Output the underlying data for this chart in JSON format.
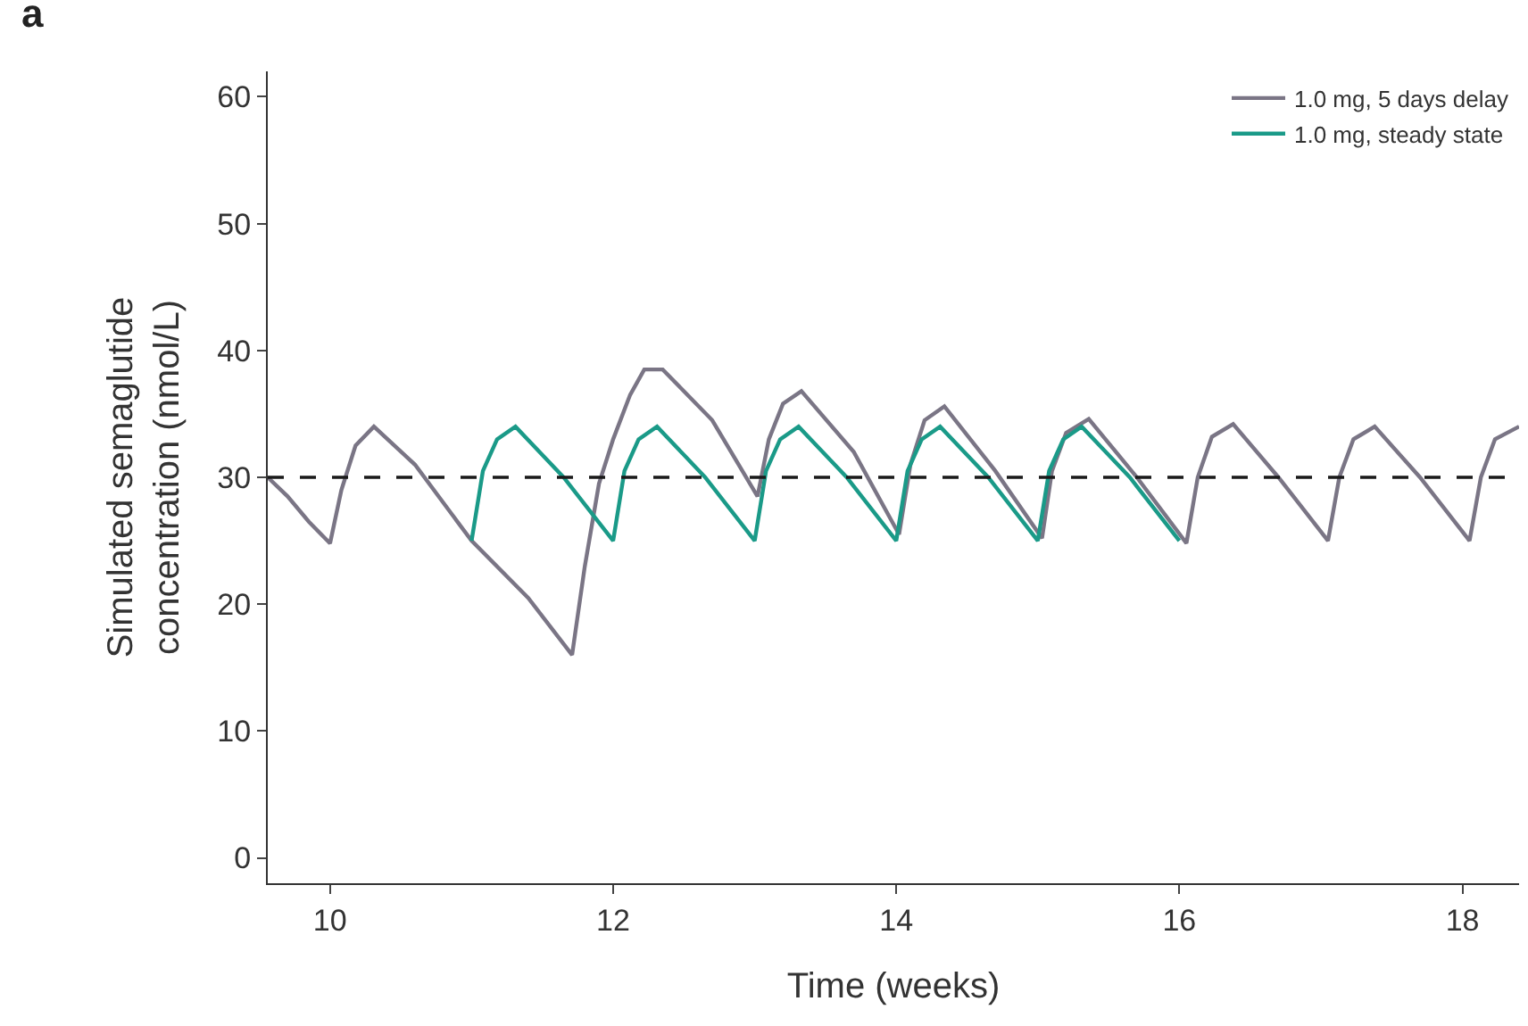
{
  "chart_data": {
    "type": "line",
    "xlabel": "Time (weeks)",
    "ylabel": "Simulated semaglutide\nconcentration (nmol/L)",
    "annotations": [
      "a"
    ],
    "xlim": [
      9.56,
      18.4
    ],
    "xticks": [
      10,
      12,
      14,
      16,
      18
    ],
    "ylim": [
      -2,
      62
    ],
    "yticks": [
      0,
      10,
      20,
      30,
      40,
      50,
      60
    ],
    "legend": "top right",
    "marker": "none",
    "line_style": "solid",
    "ref_lines": [
      {
        "axis": "y",
        "value": 30,
        "color": "#1a1a1a",
        "line_style": "dashed"
      }
    ],
    "series": [
      {
        "name": "1.0 mg, 5 days delay",
        "color": "#7a7585",
        "x": [
          9.56,
          9.7,
          9.85,
          10.0,
          10.08,
          10.18,
          10.31,
          10.6,
          11.0,
          11.4,
          11.71,
          11.8,
          11.9,
          12.0,
          12.12,
          12.22,
          12.35,
          12.7,
          13.02,
          13.1,
          13.2,
          13.33,
          13.7,
          14.02,
          14.1,
          14.2,
          14.34,
          14.7,
          15.03,
          15.1,
          15.2,
          15.36,
          15.7,
          16.05,
          16.13,
          16.23,
          16.38,
          16.7,
          17.05,
          17.13,
          17.23,
          17.38,
          17.7,
          18.05,
          18.13,
          18.23,
          18.4
        ],
        "values": [
          30,
          28.5,
          26.5,
          24.8,
          29,
          32.5,
          34,
          31,
          25,
          20.5,
          16,
          23,
          29.5,
          33,
          36.5,
          38.5,
          38.5,
          34.5,
          28.5,
          33,
          35.8,
          36.8,
          32,
          25.5,
          31,
          34.5,
          35.6,
          30.5,
          25.2,
          30.5,
          33.5,
          34.6,
          30,
          24.8,
          30,
          33.2,
          34.2,
          30,
          25,
          30,
          33,
          34,
          30,
          25,
          30,
          33,
          34
        ]
      },
      {
        "name": "1.0 mg, steady state",
        "color": "#1a9a88",
        "x": [
          11.0,
          11.08,
          11.18,
          11.31,
          11.65,
          12.0,
          12.08,
          12.18,
          12.31,
          12.65,
          13.0,
          13.08,
          13.18,
          13.31,
          13.65,
          14.0,
          14.08,
          14.18,
          14.31,
          14.65,
          15.0,
          15.08,
          15.18,
          15.31,
          15.65,
          16.0
        ],
        "values": [
          25,
          30.5,
          33,
          34,
          30,
          25,
          30.5,
          33,
          34,
          30,
          25,
          30.5,
          33,
          34,
          30,
          25,
          30.5,
          33,
          34,
          30,
          25,
          30.5,
          33,
          34,
          30,
          25
        ]
      }
    ]
  }
}
